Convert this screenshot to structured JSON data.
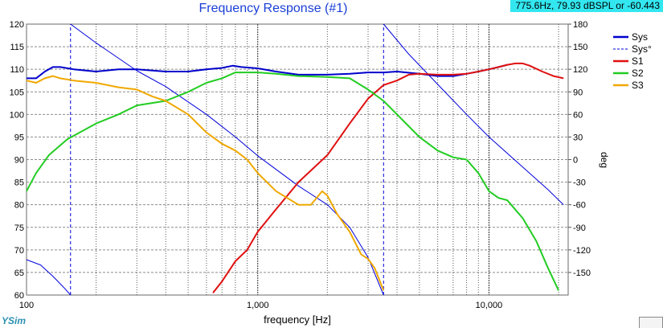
{
  "cursor_readout": "775.6Hz, 79.93 dBSPL or -60.443",
  "brand_fragment": "YSim",
  "chart_data": {
    "type": "line",
    "title": "Frequency Response (#1)",
    "xlabel": "frequency [Hz]",
    "ylabel_right": "deg",
    "xscale": "log",
    "xlim": [
      100,
      22000
    ],
    "ylim": [
      60,
      120
    ],
    "ylim_right": [
      -180,
      180
    ],
    "yticks": [
      60,
      65,
      70,
      75,
      80,
      85,
      90,
      95,
      100,
      105,
      110,
      115,
      120
    ],
    "yticks_right": [
      -150,
      -120,
      -90,
      -60,
      -30,
      0,
      30,
      60,
      90,
      120,
      150,
      180
    ],
    "xtick_labels": [
      {
        "value": 100,
        "label": "100"
      },
      {
        "value": 1000,
        "label": "1,000"
      },
      {
        "value": 10000,
        "label": "10,000"
      }
    ],
    "grid": true,
    "legend_position": "right",
    "series": [
      {
        "name": "Sys",
        "color": "#0000cc",
        "axis": "left",
        "width": 2,
        "x": [
          100,
          110,
          120,
          130,
          140,
          160,
          200,
          250,
          300,
          400,
          500,
          600,
          700,
          780,
          850,
          1000,
          1200,
          1500,
          2000,
          2500,
          3000,
          3500,
          4000,
          5000,
          6000,
          7000,
          8000,
          9000,
          10000,
          11000,
          12000
        ],
        "y": [
          108,
          108,
          109.5,
          110.5,
          110.5,
          110,
          109.5,
          110,
          110,
          109.5,
          109.5,
          110,
          110.3,
          110.8,
          110.5,
          110.2,
          109.5,
          108.8,
          108.8,
          109,
          109.3,
          109.3,
          109.5,
          109,
          108.5,
          108.5,
          109,
          109.5,
          110,
          110.5,
          111
        ]
      },
      {
        "name": "Sys°",
        "color": "#0000dd",
        "axis": "right",
        "width": 1,
        "dashed": true,
        "segments": [
          {
            "x": [
              100,
              115,
              130,
              145,
              155
            ],
            "y": [
              -133,
              -140,
              -155,
              -170,
              -180
            ]
          },
          {
            "x": [
              155,
              200,
              300,
              400,
              600,
              800,
              1000,
              1500,
              2000,
              2500,
              3000,
              3500
            ],
            "y": [
              180,
              155,
              118,
              97,
              60,
              30,
              5,
              -35,
              -60,
              -90,
              -130,
              -180
            ]
          },
          {
            "x": [
              3500,
              4500,
              6000,
              8000,
              10000,
              14000,
              18000,
              21000
            ],
            "y": [
              180,
              140,
              100,
              60,
              30,
              -10,
              -40,
              -60
            ]
          }
        ]
      },
      {
        "name": "S1",
        "color": "#e01010",
        "axis": "left",
        "width": 2,
        "x": [
          640,
          700,
          800,
          900,
          1000,
          1200,
          1500,
          2000,
          2500,
          3000,
          3500,
          4000,
          4500,
          5000,
          6000,
          7000,
          8000,
          9000,
          10000,
          11000,
          12000,
          13000,
          14000,
          15000,
          17000,
          19000,
          21000
        ],
        "y": [
          60.5,
          63,
          67.5,
          70,
          74,
          79,
          85,
          91,
          98,
          103.5,
          106.5,
          107.5,
          108.8,
          109,
          108.8,
          108.8,
          109,
          109.5,
          110,
          110.5,
          111,
          111.3,
          111.3,
          110.8,
          109.5,
          108.5,
          108
        ]
      },
      {
        "name": "S2",
        "color": "#22cc22",
        "axis": "left",
        "width": 2,
        "x": [
          100,
          110,
          125,
          150,
          200,
          250,
          300,
          400,
          500,
          600,
          700,
          800,
          1000,
          1200,
          1500,
          2000,
          2500,
          3000,
          3500,
          4000,
          5000,
          6000,
          7000,
          8000,
          9000,
          10000,
          11000,
          12000,
          14000,
          16000,
          18000,
          20000
        ],
        "y": [
          83,
          87,
          91,
          94.5,
          98,
          100,
          102,
          103,
          105,
          107,
          108,
          109.3,
          109.3,
          109,
          108.5,
          108.3,
          108,
          105.5,
          103,
          100,
          95,
          92,
          90.5,
          90,
          87,
          83,
          81.5,
          81,
          77,
          72,
          66,
          61
        ]
      },
      {
        "name": "S3",
        "color": "#f0a800",
        "axis": "left",
        "width": 2,
        "x": [
          100,
          110,
          120,
          130,
          140,
          160,
          200,
          250,
          300,
          350,
          400,
          500,
          600,
          700,
          800,
          900,
          1000,
          1200,
          1500,
          1700,
          1900,
          2000,
          2200,
          2500,
          2800,
          3000,
          3200,
          3500
        ],
        "y": [
          107.5,
          107,
          108,
          108.5,
          108,
          107.5,
          107,
          106,
          105.5,
          104,
          103,
          100,
          96,
          93.5,
          92,
          90,
          87,
          83,
          80,
          80,
          83,
          82,
          78,
          74,
          69,
          68,
          66,
          61
        ]
      }
    ]
  }
}
